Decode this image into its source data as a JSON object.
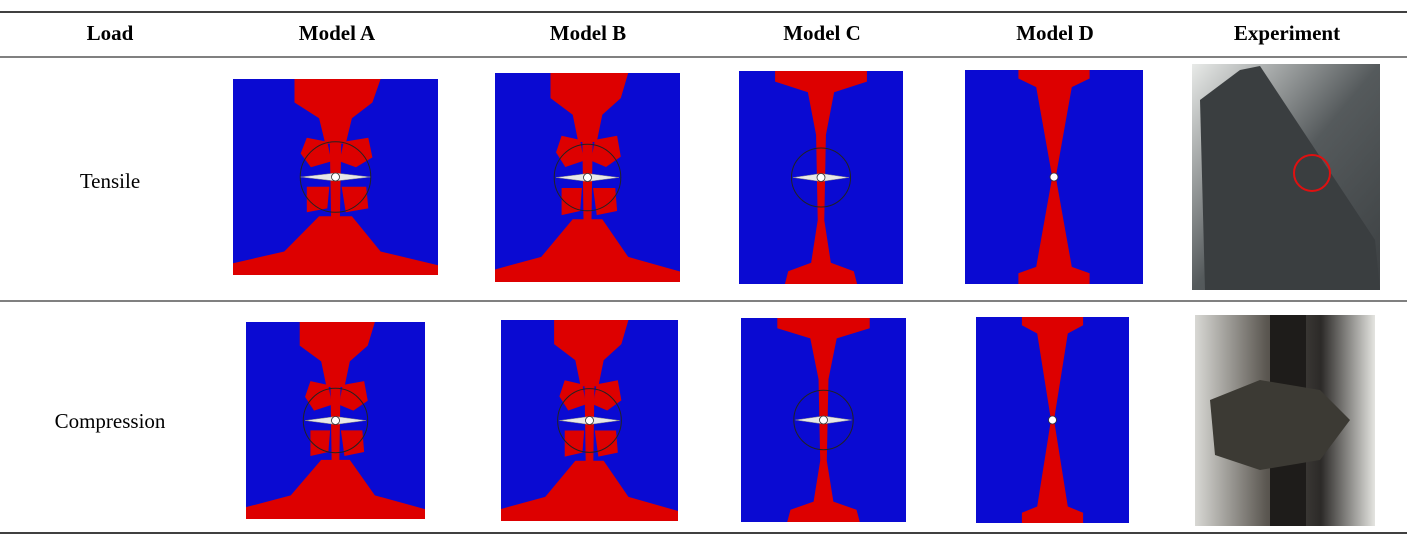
{
  "table": {
    "headers": [
      "Load",
      "Model A",
      "Model B",
      "Model C",
      "Model D",
      "Experiment"
    ],
    "rows": [
      [
        "Tensile"
      ],
      [
        "Compression"
      ]
    ]
  }
}
